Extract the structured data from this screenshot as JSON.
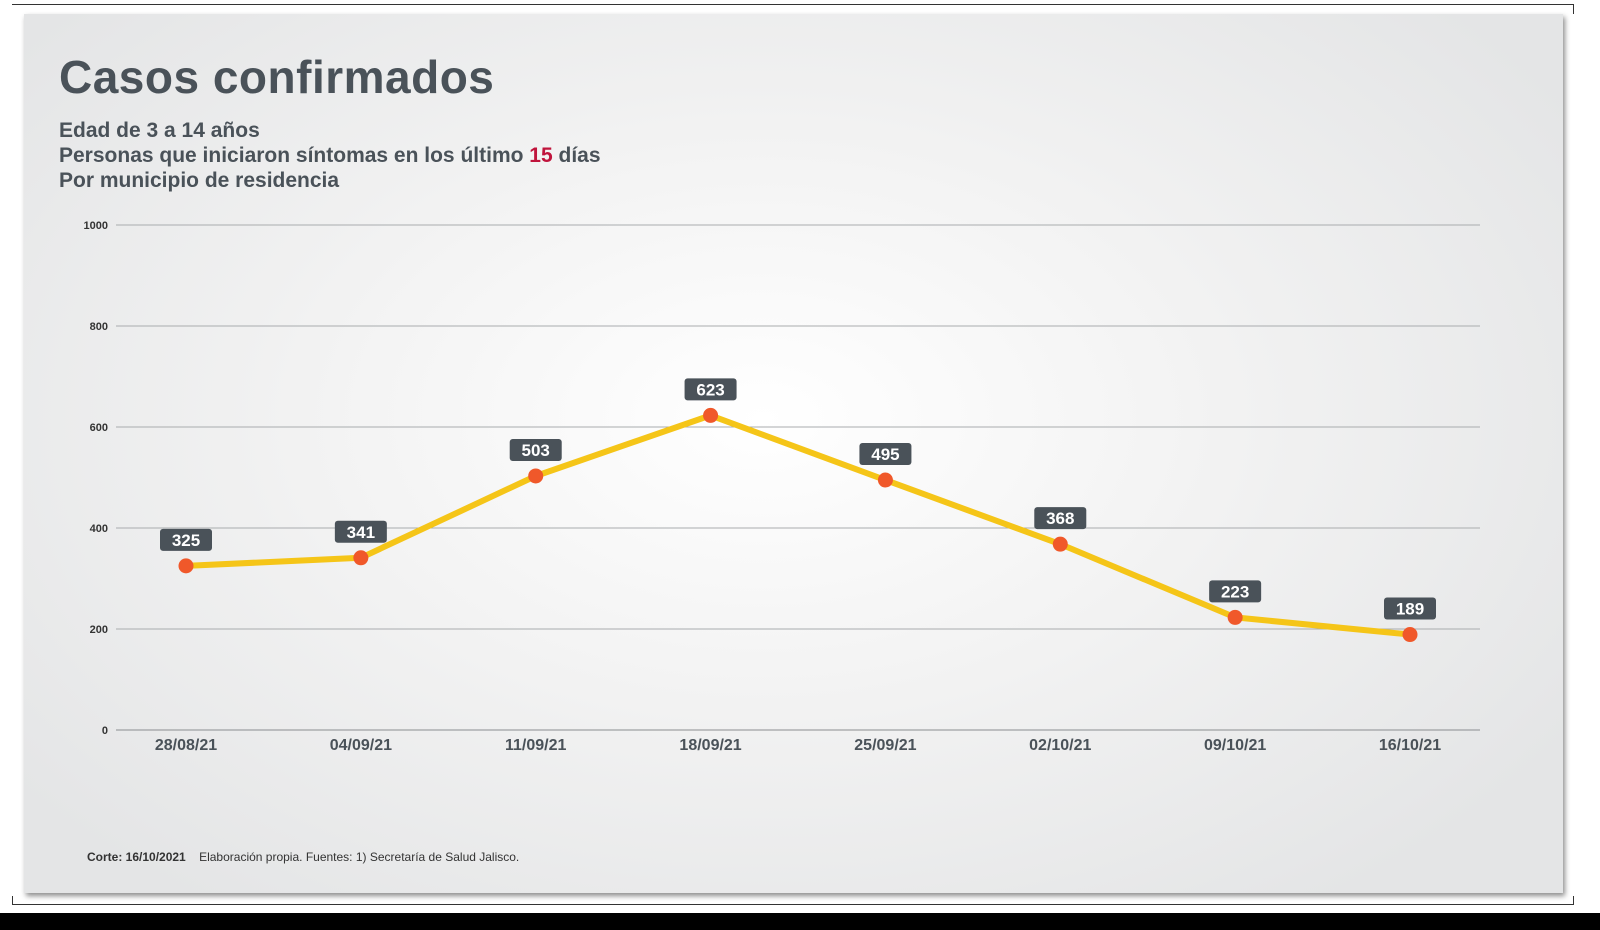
{
  "header": {
    "title": "Casos confirmados",
    "subtitle1": "Edad de 3 a 14 años",
    "subtitle2_prefix": "Personas que iniciaron síntomas en los último",
    "subtitle2_highlight": "15",
    "subtitle2_suffix": "días",
    "subtitle3": "Por municipio de residencia",
    "highlight_color": "#c0143c"
  },
  "footer": {
    "cutoff": "Corte: 16/10/2021",
    "source": "Elaboración propia.  Fuentes:  1) Secretaría de Salud Jalisco."
  },
  "chart_data": {
    "type": "line",
    "categories": [
      "28/08/21",
      "04/09/21",
      "11/09/21",
      "18/09/21",
      "25/09/21",
      "02/10/21",
      "09/10/21",
      "16/10/21"
    ],
    "series": [
      {
        "values": [
          325,
          341,
          503,
          623,
          495,
          368,
          223,
          189
        ]
      }
    ],
    "ylim": [
      0,
      1000
    ],
    "yticks": [
      0,
      200,
      400,
      600,
      800,
      1000
    ],
    "grid": true,
    "data_labels": true,
    "line_color": "#f5c518",
    "marker_color": "#f0582a",
    "label_bg_color": "#4a5259",
    "label_text_color": "#ffffff",
    "title": "",
    "xlabel": "",
    "ylabel": ""
  }
}
